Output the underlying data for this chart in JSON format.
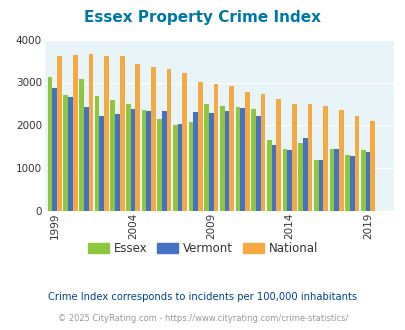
{
  "title": "Essex Property Crime Index",
  "title_color": "#0077aa",
  "subtitle": "Crime Index corresponds to incidents per 100,000 inhabitants",
  "footer": "© 2025 CityRating.com - https://www.cityrating.com/crime-statistics/",
  "years": [
    1999,
    2000,
    2001,
    2002,
    2003,
    2004,
    2005,
    2006,
    2007,
    2008,
    2009,
    2010,
    2011,
    2012,
    2013,
    2014,
    2015,
    2016,
    2017,
    2018,
    2019,
    2020
  ],
  "essex": [
    3130,
    2720,
    3090,
    2690,
    2600,
    2510,
    2360,
    2160,
    2020,
    2080,
    2500,
    2460,
    2430,
    2390,
    1660,
    1450,
    1580,
    1200,
    1440,
    1310,
    1420,
    0
  ],
  "vermont": [
    2880,
    2660,
    2430,
    2220,
    2260,
    2380,
    2330,
    2340,
    2040,
    2320,
    2280,
    2330,
    2400,
    2220,
    1540,
    1420,
    1710,
    1190,
    1440,
    1280,
    1380,
    0
  ],
  "national": [
    3620,
    3640,
    3670,
    3620,
    3610,
    3440,
    3370,
    3320,
    3210,
    3020,
    2960,
    2930,
    2770,
    2740,
    2620,
    2510,
    2500,
    2460,
    2350,
    2210,
    2100,
    0
  ],
  "essex_color": "#8dc63f",
  "vermont_color": "#4472c4",
  "national_color": "#f4a942",
  "bg_color": "#e8f4f8",
  "ylim": [
    0,
    4000
  ],
  "yticks": [
    0,
    1000,
    2000,
    3000,
    4000
  ],
  "xtick_years": [
    1999,
    2004,
    2009,
    2014,
    2019
  ],
  "bar_width": 0.3,
  "grid_color": "#ffffff",
  "subtitle_color": "#004488",
  "footer_color": "#999999"
}
